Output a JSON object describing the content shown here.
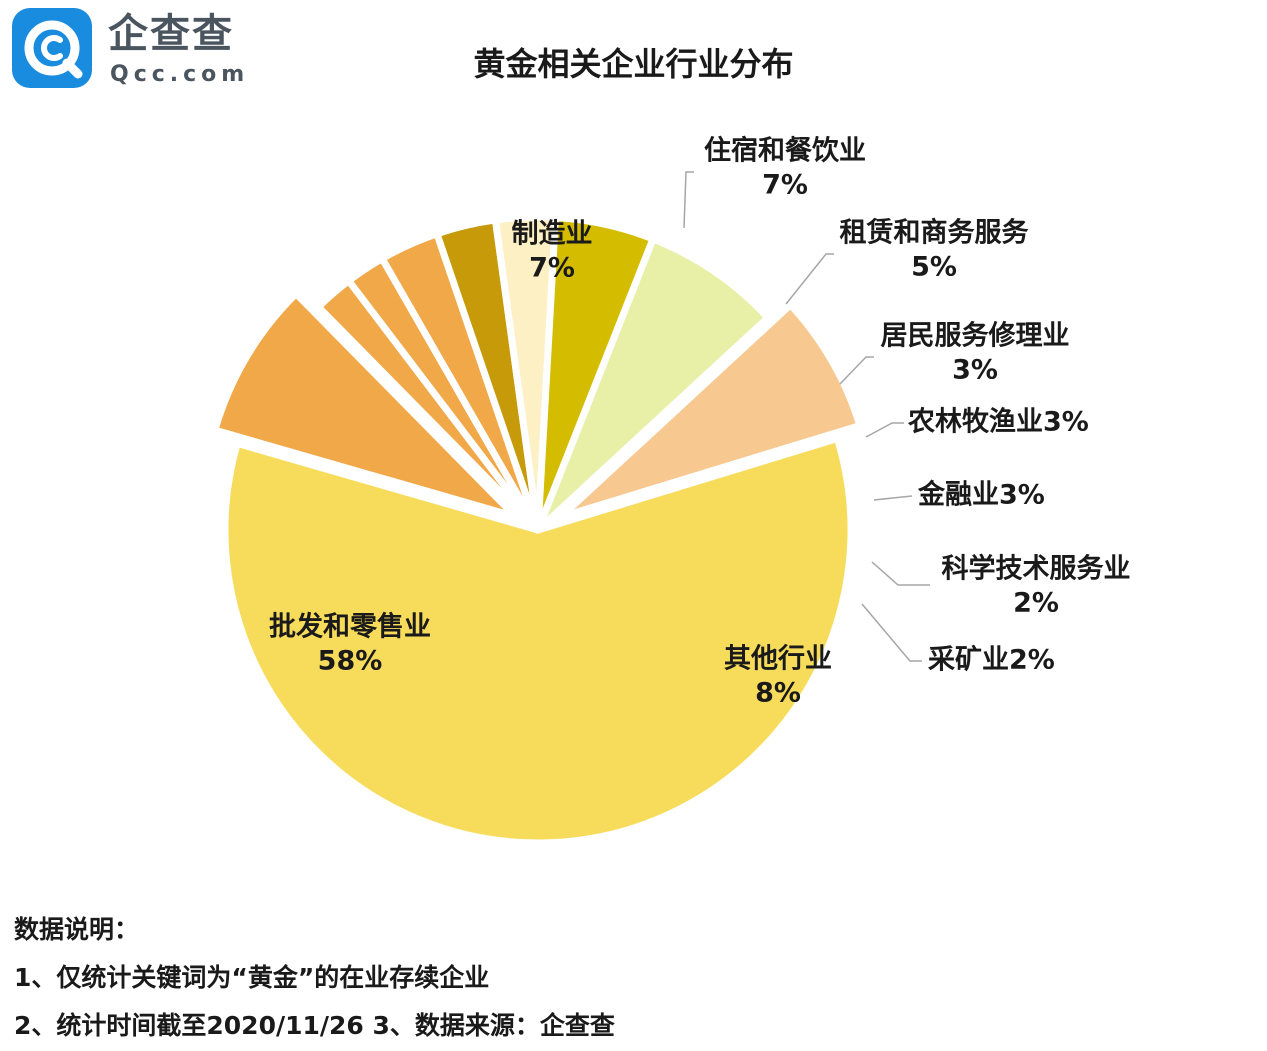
{
  "logo": {
    "cn": "企查查",
    "en": "Qcc.com",
    "icon": "qcc-logo-icon",
    "color": "#1a8ce0"
  },
  "title": "黄金相关企业行业分布",
  "chart_data": {
    "type": "pie",
    "title": "黄金相关企业行业分布",
    "slices": [
      {
        "name": "批发和零售业",
        "label": "批发和零售业",
        "pct_label": "58%",
        "value": 58,
        "color": "#f7dc5c"
      },
      {
        "name": "其他行业",
        "label": "其他行业",
        "pct_label": "8%",
        "value": 8,
        "color": "#f0a848",
        "exploded": true
      },
      {
        "name": "采矿业",
        "label": "采矿业2%",
        "value": 2,
        "color": "#f0a848"
      },
      {
        "name": "科学技术服务业",
        "label": "科学技术服务业",
        "pct_label": "2%",
        "value": 2,
        "color": "#f0a848"
      },
      {
        "name": "金融业",
        "label": "金融业3%",
        "value": 3,
        "color": "#f0a848"
      },
      {
        "name": "农林牧渔业",
        "label": "农林牧渔业3%",
        "value": 3,
        "color": "#c79a0a"
      },
      {
        "name": "居民服务修理业",
        "label": "居民服务修理业",
        "pct_label": "3%",
        "value": 3,
        "color": "#fdf0c4"
      },
      {
        "name": "租赁和商务服务",
        "label": "租赁和商务服务",
        "pct_label": "5%",
        "value": 5,
        "color": "#d4bd00"
      },
      {
        "name": "住宿和餐饮业",
        "label": "住宿和餐饮业",
        "pct_label": "7%",
        "value": 7,
        "color": "#e8f0a8"
      },
      {
        "name": "制造业",
        "label": "制造业",
        "pct_label": "7%",
        "value": 7,
        "color": "#f7c890",
        "exploded": true
      }
    ]
  },
  "notes": {
    "heading": "数据说明：",
    "line1": "1、仅统计关键词为“黄金”的在业存续企业",
    "line2": "2、统计时间截至2020/11/26   3、数据来源：企查查"
  }
}
